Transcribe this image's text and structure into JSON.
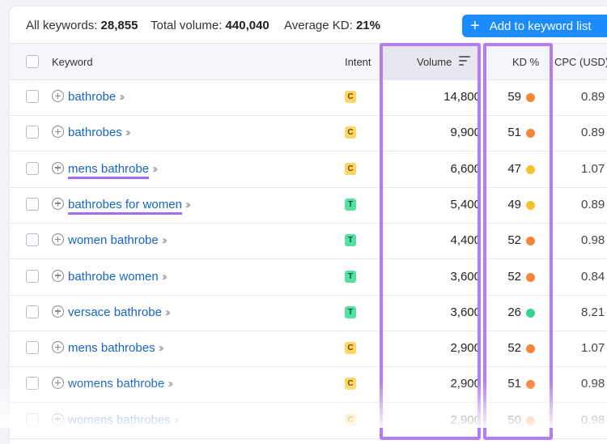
{
  "summary": {
    "all_keywords_label": "All keywords:",
    "all_keywords_value": "28,855",
    "total_volume_label": "Total volume:",
    "total_volume_value": "440,040",
    "avg_kd_label": "Average KD:",
    "avg_kd_value": "21%"
  },
  "toolbar": {
    "add_button_label": "Add to keyword list"
  },
  "columns": {
    "keyword": "Keyword",
    "intent": "Intent",
    "volume": "Volume",
    "kd": "KD %",
    "cpc": "CPC (USD)"
  },
  "colors": {
    "kd_orange": "#f5863a",
    "kd_yellow": "#f4c22e",
    "kd_green": "#3bd18e",
    "highlight": "#b57cf3"
  },
  "rows": [
    {
      "keyword": "bathrobe",
      "intent": "C",
      "volume": "14,800",
      "kd": "59",
      "kd_color": "orange",
      "cpc": "0.89",
      "highlighted": false
    },
    {
      "keyword": "bathrobes",
      "intent": "C",
      "volume": "9,900",
      "kd": "51",
      "kd_color": "orange",
      "cpc": "0.89",
      "highlighted": false
    },
    {
      "keyword": "mens bathrobe",
      "intent": "C",
      "volume": "6,600",
      "kd": "47",
      "kd_color": "yellow",
      "cpc": "1.07",
      "highlighted": true
    },
    {
      "keyword": "bathrobes for women",
      "intent": "T",
      "volume": "5,400",
      "kd": "49",
      "kd_color": "yellow",
      "cpc": "0.89",
      "highlighted": true
    },
    {
      "keyword": "women bathrobe",
      "intent": "T",
      "volume": "4,400",
      "kd": "52",
      "kd_color": "orange",
      "cpc": "0.98",
      "highlighted": false
    },
    {
      "keyword": "bathrobe women",
      "intent": "T",
      "volume": "3,600",
      "kd": "52",
      "kd_color": "orange",
      "cpc": "0.84",
      "highlighted": false
    },
    {
      "keyword": "versace bathrobe",
      "intent": "T",
      "volume": "3,600",
      "kd": "26",
      "kd_color": "green",
      "cpc": "8.21",
      "highlighted": false
    },
    {
      "keyword": "mens bathrobes",
      "intent": "C",
      "volume": "2,900",
      "kd": "52",
      "kd_color": "orange",
      "cpc": "1.07",
      "highlighted": false
    },
    {
      "keyword": "womens bathrobe",
      "intent": "C",
      "volume": "2,900",
      "kd": "51",
      "kd_color": "orange",
      "cpc": "0.98",
      "highlighted": false
    },
    {
      "keyword": "womens bathrobes",
      "intent": "C",
      "volume": "2,900",
      "kd": "50",
      "kd_color": "orange",
      "cpc": "0.98",
      "highlighted": false
    }
  ]
}
